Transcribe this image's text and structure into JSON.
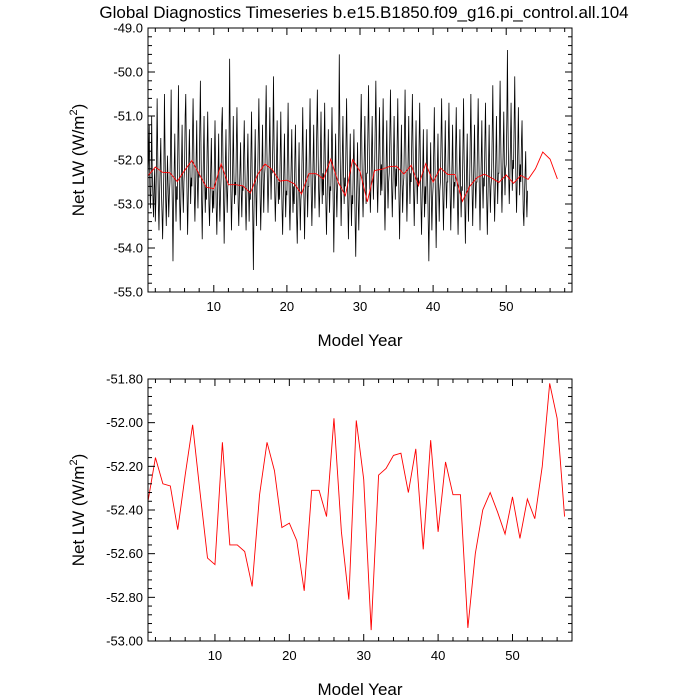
{
  "title": "Global Diagnostics Timeseries b.e15.B1850.f09_g16.pi_control.all.104",
  "colors": {
    "monthly": "#000000",
    "annual": "#ff0000",
    "axes": "#000000",
    "background": "#ffffff"
  },
  "chart_data": [
    {
      "id": "top",
      "type": "line",
      "xlabel": "Model Year",
      "ylabel_main": "Net LW (W/m",
      "ylabel_sup": "2",
      "ylabel_close": ")",
      "xlim": [
        1,
        59
      ],
      "ylim": [
        -55,
        -49
      ],
      "yticks": [
        -49,
        -50,
        -51,
        -52,
        -53,
        -54,
        -55
      ],
      "ytick_labels": [
        "-49.0",
        "-50.0",
        "-51.0",
        "-52.0",
        "-53.0",
        "-54.0",
        "-55.0"
      ],
      "xticks": [
        10,
        20,
        30,
        40,
        50
      ],
      "xtick_labels": [
        "10",
        "20",
        "30",
        "40",
        "50"
      ],
      "series": [
        {
          "name": "monthly",
          "color": "#000000",
          "x_start": 1,
          "x_step": 0.0833333,
          "values": [
            -52.4,
            -52.0,
            -51.2,
            -52.6,
            -53.1,
            -52.5,
            -51.0,
            -52.3,
            -52.8,
            -53.3,
            -52.6,
            -52.2,
            -53.4,
            -52.9,
            -52.0,
            -50.6,
            -51.9,
            -53.0,
            -53.6,
            -52.8,
            -52.1,
            -51.5,
            -52.7,
            -53.2,
            -53.8,
            -53.0,
            -52.3,
            -50.5,
            -51.8,
            -52.9,
            -53.5,
            -52.7,
            -51.9,
            -52.6,
            -53.3,
            -52.8,
            -52.5,
            -51.7,
            -50.4,
            -52.2,
            -53.1,
            -54.3,
            -53.0,
            -52.2,
            -51.4,
            -52.7,
            -53.4,
            -52.6,
            -52.9,
            -51.6,
            -50.3,
            -51.9,
            -53.0,
            -53.6,
            -52.8,
            -52.1,
            -51.2,
            -52.6,
            -53.2,
            -52.5,
            -52.2,
            -51.0,
            -50.5,
            -51.8,
            -52.7,
            -53.7,
            -52.9,
            -52.0,
            -51.3,
            -52.3,
            -53.0,
            -52.4,
            -52.6,
            -51.5,
            -50.6,
            -51.6,
            -52.8,
            -53.4,
            -52.7,
            -52.0,
            -51.1,
            -52.5,
            -53.1,
            -52.3,
            -52.4,
            -51.3,
            -50.2,
            -51.7,
            -52.9,
            -53.8,
            -52.8,
            -51.9,
            -51.0,
            -52.4,
            -53.2,
            -52.6,
            -52.9,
            -51.8,
            -50.9,
            -52.0,
            -53.0,
            -53.5,
            -52.8,
            -52.2,
            -51.5,
            -52.6,
            -53.2,
            -52.7,
            -53.1,
            -52.0,
            -51.1,
            -52.2,
            -53.1,
            -53.7,
            -52.9,
            -52.3,
            -51.4,
            -52.8,
            -53.4,
            -52.8,
            -52.4,
            -51.2,
            -50.8,
            -51.9,
            -52.8,
            -53.9,
            -53.0,
            -52.1,
            -51.3,
            -52.6,
            -53.2,
            -52.6,
            -52.5,
            -51.6,
            -49.7,
            -51.5,
            -52.7,
            -53.6,
            -52.9,
            -52.1,
            -51.0,
            -52.3,
            -53.0,
            -52.5,
            -52.8,
            -51.7,
            -50.8,
            -51.9,
            -53.0,
            -53.5,
            -52.8,
            -52.2,
            -51.6,
            -52.7,
            -53.3,
            -52.6,
            -52.7,
            -51.9,
            -51.1,
            -52.1,
            -53.0,
            -53.6,
            -52.9,
            -52.2,
            -51.4,
            -52.6,
            -53.4,
            -52.7,
            -52.9,
            -51.8,
            -50.9,
            -52.3,
            -53.3,
            -54.5,
            -53.1,
            -52.2,
            -51.3,
            -52.7,
            -53.5,
            -52.6,
            -52.4,
            -51.5,
            -50.6,
            -51.8,
            -52.8,
            -53.6,
            -52.9,
            -52.1,
            -51.2,
            -52.5,
            -53.2,
            -52.4,
            -52.2,
            -51.2,
            -50.3,
            -51.6,
            -52.5,
            -53.2,
            -52.6,
            -51.8,
            -50.8,
            -52.1,
            -52.9,
            -52.2,
            -52.3,
            -51.5,
            -50.1,
            -51.7,
            -52.7,
            -53.4,
            -52.8,
            -52.0,
            -51.1,
            -52.3,
            -53.0,
            -52.5,
            -52.9,
            -51.9,
            -50.9,
            -52.2,
            -53.1,
            -53.7,
            -52.9,
            -52.2,
            -51.4,
            -52.6,
            -53.3,
            -52.7,
            -52.8,
            -51.7,
            -50.7,
            -52.0,
            -53.0,
            -53.6,
            -52.9,
            -52.1,
            -51.3,
            -52.5,
            -53.2,
            -52.6,
            -53.0,
            -52.0,
            -51.2,
            -52.3,
            -53.3,
            -53.9,
            -53.0,
            -52.4,
            -51.6,
            -52.8,
            -53.6,
            -52.9,
            -52.7,
            -51.8,
            -50.8,
            -52.0,
            -52.9,
            -53.8,
            -52.9,
            -52.2,
            -51.3,
            -52.5,
            -53.3,
            -52.6,
            -52.6,
            -51.6,
            -50.6,
            -51.9,
            -52.8,
            -53.5,
            -52.8,
            -52.0,
            -51.2,
            -52.4,
            -53.1,
            -52.4,
            -52.3,
            -51.3,
            -50.4,
            -51.6,
            -52.6,
            -53.3,
            -52.7,
            -51.9,
            -50.9,
            -52.2,
            -53.0,
            -52.3,
            -52.8,
            -51.7,
            -50.7,
            -52.0,
            -53.0,
            -53.7,
            -52.9,
            -52.1,
            -51.3,
            -52.5,
            -53.2,
            -52.6,
            -52.7,
            -51.9,
            -50.8,
            -52.0,
            -53.0,
            -54.1,
            -53.0,
            -52.2,
            -51.4,
            -52.6,
            -53.3,
            -52.6,
            -52.5,
            -51.5,
            -49.6,
            -51.4,
            -52.5,
            -53.5,
            -52.7,
            -51.9,
            -51.0,
            -52.3,
            -53.0,
            -52.4,
            -52.6,
            -51.6,
            -50.6,
            -51.9,
            -53.0,
            -53.8,
            -52.9,
            -52.2,
            -51.4,
            -52.7,
            -53.5,
            -52.8,
            -53.0,
            -52.1,
            -51.3,
            -52.4,
            -53.4,
            -54.2,
            -53.1,
            -52.4,
            -51.6,
            -52.9,
            -53.6,
            -52.8,
            -52.4,
            -51.4,
            -50.5,
            -51.7,
            -52.7,
            -53.3,
            -52.6,
            -51.9,
            -51.0,
            -52.3,
            -53.0,
            -52.3,
            -52.3,
            -51.3,
            -50.3,
            -51.6,
            -52.6,
            -53.2,
            -52.6,
            -51.8,
            -51.0,
            -52.2,
            -52.9,
            -52.3,
            -52.2,
            -51.2,
            -50.2,
            -51.5,
            -52.5,
            -53.2,
            -52.5,
            -51.7,
            -50.8,
            -52.0,
            -52.8,
            -52.1,
            -52.7,
            -51.6,
            -50.6,
            -51.8,
            -52.9,
            -53.6,
            -52.8,
            -52.0,
            -51.1,
            -52.4,
            -53.1,
            -52.5,
            -52.3,
            -51.4,
            -50.4,
            -51.6,
            -52.6,
            -53.3,
            -52.6,
            -51.9,
            -51.0,
            -52.2,
            -52.9,
            -52.2,
            -52.6,
            -51.6,
            -50.6,
            -51.9,
            -52.9,
            -53.8,
            -52.8,
            -52.1,
            -51.2,
            -52.5,
            -53.2,
            -52.6,
            -52.4,
            -51.4,
            -50.4,
            -51.6,
            -52.6,
            -53.4,
            -52.7,
            -51.9,
            -51.0,
            -52.3,
            -53.0,
            -52.3,
            -52.5,
            -51.5,
            -50.5,
            -51.7,
            -52.7,
            -53.5,
            -52.7,
            -52.0,
            -51.1,
            -52.3,
            -53.0,
            -52.4,
            -52.6,
            -51.6,
            -50.7,
            -51.9,
            -53.0,
            -53.7,
            -52.9,
            -52.2,
            -51.3,
            -52.6,
            -53.3,
            -52.6,
            -53.0,
            -52.2,
            -51.3,
            -52.5,
            -53.4,
            -54.3,
            -53.2,
            -52.4,
            -51.6,
            -52.8,
            -53.6,
            -52.9,
            -52.6,
            -51.8,
            -50.8,
            -52.0,
            -53.0,
            -54.0,
            -53.0,
            -52.2,
            -51.4,
            -52.6,
            -53.4,
            -52.7,
            -52.5,
            -51.5,
            -50.6,
            -51.8,
            -52.8,
            -53.6,
            -52.8,
            -52.0,
            -51.1,
            -52.4,
            -53.1,
            -52.5,
            -52.5,
            -51.6,
            -50.7,
            -51.9,
            -52.8,
            -53.6,
            -52.8,
            -52.1,
            -51.2,
            -52.4,
            -53.1,
            -52.5,
            -52.6,
            -51.7,
            -50.8,
            -52.0,
            -53.0,
            -53.7,
            -52.9,
            -52.2,
            -51.3,
            -52.6,
            -53.3,
            -52.6,
            -52.7,
            -51.7,
            -50.6,
            -52.0,
            -53.0,
            -53.9,
            -52.9,
            -52.2,
            -51.4,
            -52.6,
            -53.4,
            -52.7,
            -52.5,
            -51.5,
            -50.5,
            -51.8,
            -52.7,
            -53.5,
            -52.7,
            -52.0,
            -51.2,
            -52.4,
            -53.1,
            -52.5,
            -52.5,
            -51.5,
            -50.6,
            -51.8,
            -52.8,
            -53.6,
            -52.8,
            -52.0,
            -51.1,
            -52.4,
            -53.1,
            -52.4,
            -52.6,
            -51.6,
            -50.7,
            -51.9,
            -52.9,
            -53.7,
            -52.9,
            -52.1,
            -51.2,
            -52.5,
            -53.2,
            -52.6,
            -52.4,
            -51.4,
            -50.3,
            -51.7,
            -52.7,
            -53.4,
            -52.7,
            -51.9,
            -51.0,
            -52.3,
            -53.0,
            -52.3,
            -52.3,
            -51.2,
            -50.2,
            -51.5,
            -52.5,
            -53.2,
            -52.5,
            -51.8,
            -50.9,
            -52.1,
            -52.8,
            -52.2,
            -52.1,
            -51.1,
            -49.5,
            -51.3,
            -52.3,
            -53.0,
            -52.4,
            -51.6,
            -50.7,
            -51.9,
            -52.7,
            -52.0,
            -52.2,
            -51.2,
            -50.1,
            -51.5,
            -52.5,
            -53.2,
            -52.5,
            -51.7,
            -50.8,
            -52.0,
            -52.8,
            -52.1,
            -52.5,
            -51.6,
            -51.1,
            -52.3,
            -53.2,
            -53.5,
            -52.8,
            -52.3,
            -51.8,
            -52.8,
            -53.3,
            -52.7
          ]
        },
        {
          "name": "annual",
          "color": "#ff0000",
          "x_start": 1,
          "x_step": 1,
          "values": [
            -52.36,
            -52.16,
            -52.28,
            -52.29,
            -52.49,
            -52.24,
            -52.01,
            -52.32,
            -52.62,
            -52.65,
            -52.09,
            -52.56,
            -52.56,
            -52.59,
            -52.75,
            -52.33,
            -52.09,
            -52.22,
            -52.48,
            -52.46,
            -52.54,
            -52.77,
            -52.31,
            -52.31,
            -52.43,
            -51.98,
            -52.5,
            -52.81,
            -51.99,
            -52.26,
            -52.95,
            -52.24,
            -52.21,
            -52.15,
            -52.14,
            -52.32,
            -52.12,
            -52.58,
            -52.08,
            -52.5,
            -52.18,
            -52.33,
            -52.33,
            -52.94,
            -52.6,
            -52.4,
            -52.32,
            -52.41,
            -52.51,
            -52.34,
            -52.53,
            -52.35,
            -52.44,
            -52.2,
            -51.82,
            -51.98,
            -52.43
          ]
        }
      ]
    },
    {
      "id": "bottom",
      "type": "line",
      "xlabel": "Model Year",
      "ylabel_main": "Net LW (W/m",
      "ylabel_sup": "2",
      "ylabel_close": ")",
      "xlim": [
        1,
        58
      ],
      "ylim": [
        -53.0,
        -51.8
      ],
      "yticks": [
        -51.8,
        -52.0,
        -52.2,
        -52.4,
        -52.6,
        -52.8,
        -53.0
      ],
      "ytick_labels": [
        "-51.80",
        "-52.00",
        "-52.20",
        "-52.40",
        "-52.60",
        "-52.80",
        "-53.00"
      ],
      "xticks": [
        10,
        20,
        30,
        40,
        50
      ],
      "xtick_labels": [
        "10",
        "20",
        "30",
        "40",
        "50"
      ],
      "series": [
        {
          "name": "annual",
          "color": "#ff0000",
          "x_start": 1,
          "x_step": 1,
          "values": [
            -52.36,
            -52.16,
            -52.28,
            -52.29,
            -52.49,
            -52.24,
            -52.01,
            -52.32,
            -52.62,
            -52.65,
            -52.09,
            -52.56,
            -52.56,
            -52.59,
            -52.75,
            -52.33,
            -52.09,
            -52.22,
            -52.48,
            -52.46,
            -52.54,
            -52.77,
            -52.31,
            -52.31,
            -52.43,
            -51.98,
            -52.5,
            -52.81,
            -51.99,
            -52.26,
            -52.95,
            -52.24,
            -52.21,
            -52.15,
            -52.14,
            -52.32,
            -52.12,
            -52.58,
            -52.08,
            -52.5,
            -52.18,
            -52.33,
            -52.33,
            -52.94,
            -52.6,
            -52.4,
            -52.32,
            -52.41,
            -52.51,
            -52.34,
            -52.53,
            -52.35,
            -52.44,
            -52.2,
            -51.82,
            -51.98,
            -52.43
          ]
        }
      ]
    }
  ]
}
